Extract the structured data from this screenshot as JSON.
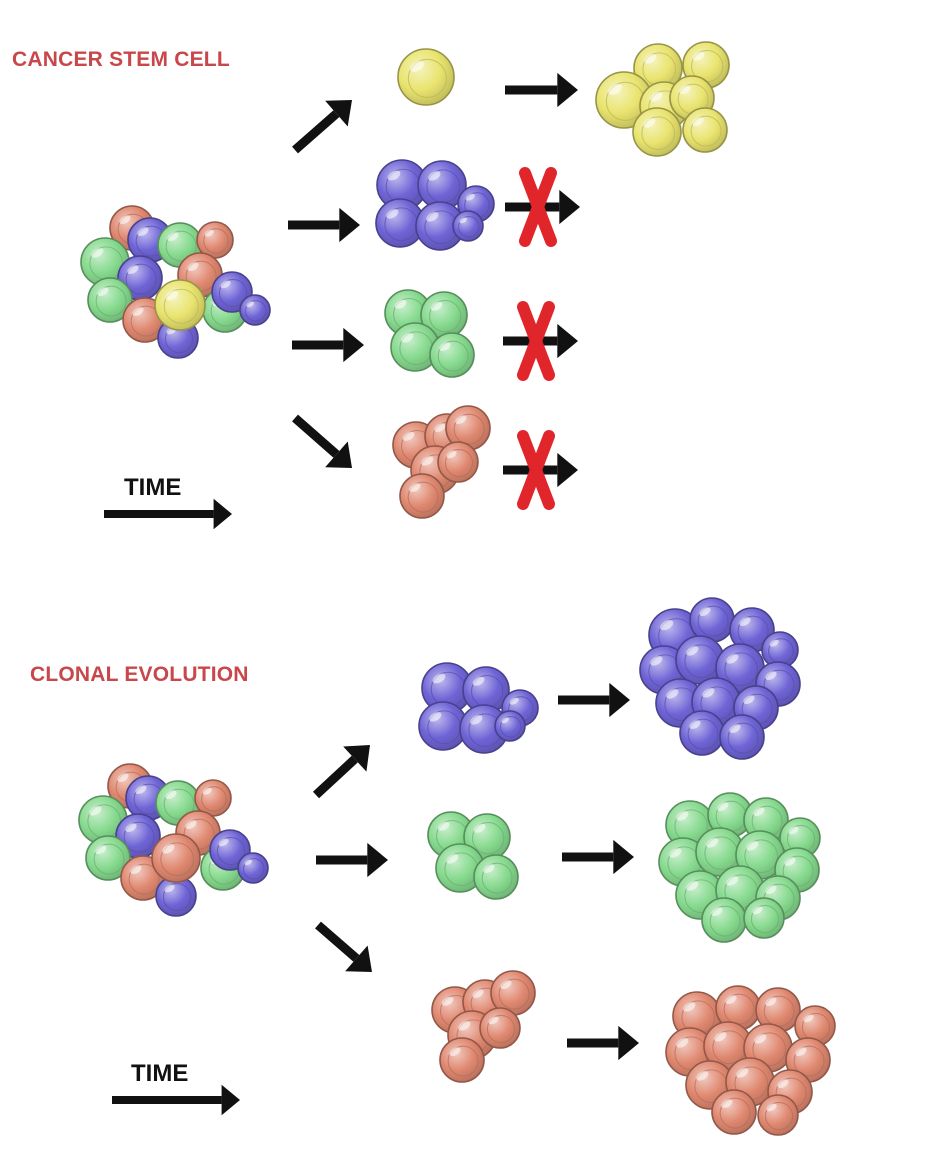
{
  "panels": {
    "cancer_stem_cell": {
      "title": "CANCER STEM CELL",
      "time_label": "TIME"
    },
    "clonal_evolution": {
      "title": "CLONAL EVOLUTION",
      "time_label": "TIME"
    }
  },
  "colors": {
    "title": "#c9474a",
    "arrow": "#111111",
    "block": "#e0262b",
    "yellow": "#e9e46e",
    "blue": "#6f64d6",
    "green": "#86da8e",
    "salmon": "#e08870"
  }
}
